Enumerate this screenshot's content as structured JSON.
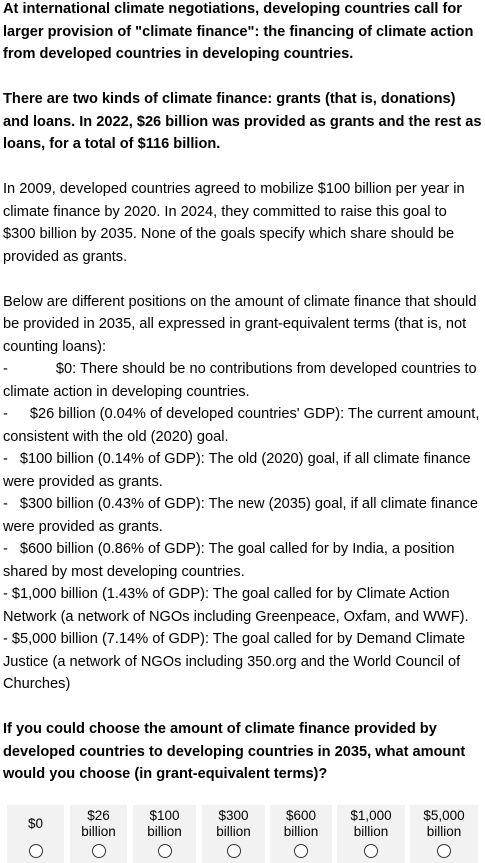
{
  "intro": {
    "paragraph1": "At international climate negotiations, developing countries call for larger provision of \"climate finance\": the financing of climate action from developed countries in developing countries.",
    "paragraph2": "There are two kinds of climate finance: grants (that is, donations) and loans. In 2022, $26 billion was provided as grants and the rest as loans, for a total of $116 billion.",
    "paragraph3": "In 2009, developed countries agreed to mobilize $100 billion per year in climate finance by 2020. In 2024, they committed to raise this goal to $300 billion by 2035. None of the goals specify which share should be provided as grants.",
    "paragraph4": "Below are different positions on the amount of climate finance that should be provided in 2035, all expressed in grant-equivalent terms (that is, not counting loans):"
  },
  "positions": [
    {
      "dash": "-",
      "text": "$0: There should be no contributions from developed countries to climate action in developing countries."
    },
    {
      "dash": "-",
      "text": "$26 billion (0.04% of developed countries' GDP): The current amount, consistent with the old (2020) goal."
    },
    {
      "dash": "-",
      "text": "$100 billion (0.14% of GDP): The old (2020) goal, if all climate finance were provided as grants."
    },
    {
      "dash": "-",
      "text": "$300 billion (0.43% of GDP): The new (2035) goal, if all climate finance were provided as grants."
    },
    {
      "dash": "-",
      "text": "$600 billion (0.86% of GDP): The goal called for by India, a position shared by most developing countries."
    },
    {
      "dash": "-",
      "text": "$1,000 billion (1.43% of GDP): The goal called for by Climate Action Network (a network of NGOs including Greenpeace, Oxfam, and WWF)."
    },
    {
      "dash": "-",
      "text": "$5,000 billion (7.14% of GDP): The goal called for by Demand Climate Justice (a network of NGOs including 350.org and the World Council of Churches)"
    }
  ],
  "question": "If you could choose the amount of climate finance provided by developed countries to developing countries in 2035, what amount would you choose (in grant-equivalent terms)?",
  "options": [
    {
      "label": "$0",
      "selected": false
    },
    {
      "label": "$26\nbillion",
      "selected": false
    },
    {
      "label": "$100\nbillion",
      "selected": false
    },
    {
      "label": "$300\nbillion",
      "selected": false
    },
    {
      "label": "$600\nbillion",
      "selected": false
    },
    {
      "label": "$1,000\nbillion",
      "selected": false
    },
    {
      "label": "$5,000\nbillion",
      "selected": false
    }
  ]
}
